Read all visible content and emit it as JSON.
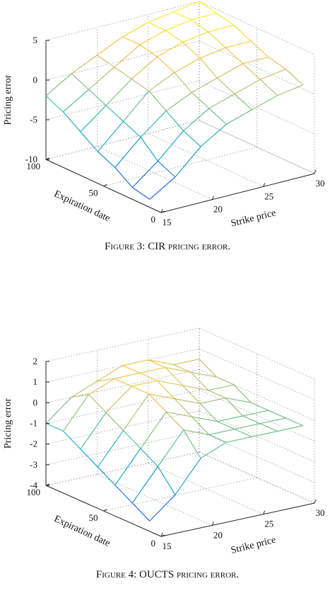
{
  "chart_data": [
    {
      "type": "surface",
      "zlabel": "Pricing error",
      "xlabel": "Strike price",
      "ylabel": "Expiration date",
      "caption": "Figure 3: CIR pricing error.",
      "x": [
        15,
        17.5,
        20,
        22.5,
        25,
        27.5,
        30
      ],
      "y": [
        10,
        25,
        40,
        55,
        70,
        85,
        100
      ],
      "z": [
        [
          -9,
          -7,
          -4,
          -2,
          -1,
          0,
          0.5
        ],
        [
          -8.5,
          -6,
          -3,
          -1,
          0,
          1,
          1.5
        ],
        [
          -7,
          -4,
          -1.5,
          0,
          1,
          2,
          2
        ],
        [
          -6,
          -3,
          0,
          1.5,
          2.5,
          3,
          3
        ],
        [
          -4.5,
          -2,
          0.5,
          2.5,
          3.5,
          4,
          4
        ],
        [
          -3,
          -1,
          1,
          3,
          4,
          4.5,
          4.5
        ],
        [
          -2,
          0,
          1.5,
          3,
          4,
          4.5,
          5
        ]
      ],
      "xlim": [
        15,
        30
      ],
      "xticks": [
        15,
        20,
        25,
        30
      ],
      "ylim": [
        0,
        100
      ],
      "yticks": [
        0,
        50,
        100
      ],
      "zlim": [
        -10,
        5
      ],
      "zticks": [
        -10,
        -5,
        0,
        5
      ],
      "grid": true
    },
    {
      "type": "surface",
      "zlabel": "Pricing error",
      "xlabel": "Strike price",
      "ylabel": "Expiration date",
      "caption": "Figure 4: OUCTS pricing error.",
      "x": [
        15,
        17.5,
        20,
        22.5,
        25,
        27.5,
        30
      ],
      "y": [
        10,
        25,
        40,
        55,
        70,
        85,
        100
      ],
      "z": [
        [
          -3.5,
          -2.5,
          -1,
          -0.5,
          -0.5,
          -0.5,
          -0.5
        ],
        [
          -3,
          -1.5,
          0,
          -0.5,
          -0.5,
          -0.5,
          -0.5
        ],
        [
          -2.5,
          -1,
          0.5,
          0,
          -0.5,
          -0.5,
          -0.5
        ],
        [
          -2,
          -0.5,
          1,
          0.5,
          0,
          0,
          -0.5
        ],
        [
          -1.5,
          0,
          1,
          1,
          0.5,
          0,
          0
        ],
        [
          -1,
          0.5,
          1,
          1,
          1,
          0.5,
          0
        ],
        [
          -1,
          0,
          0.5,
          1,
          1,
          0.5,
          0.5
        ]
      ],
      "xlim": [
        15,
        30
      ],
      "xticks": [
        15,
        20,
        25,
        30
      ],
      "ylim": [
        0,
        100
      ],
      "yticks": [
        0,
        50,
        100
      ],
      "zlim": [
        -4,
        2
      ],
      "zticks": [
        -4,
        -3,
        -2,
        -1,
        0,
        1,
        2
      ],
      "grid": true
    }
  ]
}
